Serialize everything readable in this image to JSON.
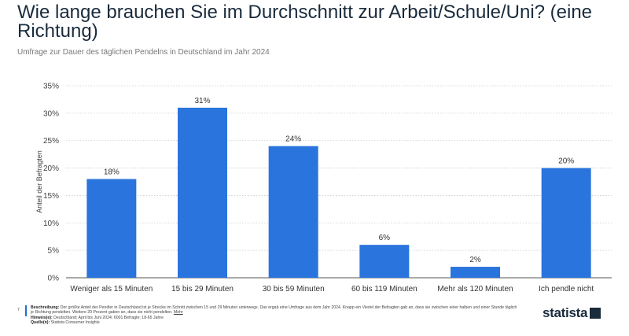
{
  "chart_data": {
    "type": "bar",
    "title": "Wie lange brauchen Sie im Durchschnitt zur Arbeit/Schule/Uni? (eine Richtung)",
    "subtitle": "Umfrage zur Dauer des täglichen Pendelns in Deutschland im Jahr 2024",
    "ylabel": "Anteil der Befragten",
    "xlabel": "",
    "ylim": [
      0,
      35
    ],
    "yticks": [
      "0%",
      "5%",
      "10%",
      "15%",
      "20%",
      "25%",
      "30%",
      "35%"
    ],
    "categories": [
      "Weniger als 15 Minuten",
      "15 bis 29 Minuten",
      "30 bis 59 Minuten",
      "60 bis 119 Minuten",
      "Mehr als 120 Minuten",
      "Ich pendle nicht"
    ],
    "values": [
      18,
      31,
      24,
      6,
      2,
      20
    ],
    "data_labels": [
      "18%",
      "31%",
      "24%",
      "6%",
      "2%",
      "20%"
    ],
    "grid": true,
    "bar_color": "#2a74dd"
  },
  "footer": {
    "page_number": "7",
    "description_label": "Beschreibung:",
    "description": "Der größte Anteil der Pendler in Deutschland ist je Strecke im Schnitt zwischen 15 und 29 Minuten unterwegs. Das ergab eine Umfrage aus dem Jahr 2024. Knapp ein Viertel der Befragten gab an, dass sie zwischen einer halben und einer Stunde täglich je Richtung pendelten. Weitere 20 Prozent gaben an, dass sie nicht pendelten.",
    "more_link": "Mehr",
    "notes_label": "Hinweis(e):",
    "notes": "Deutschland; April bis Juni 2024; 6001 Befragte; 18-65 Jahre",
    "source_label": "Quelle(n):",
    "source": "Statista Consumer Insights"
  },
  "logo": "statista"
}
